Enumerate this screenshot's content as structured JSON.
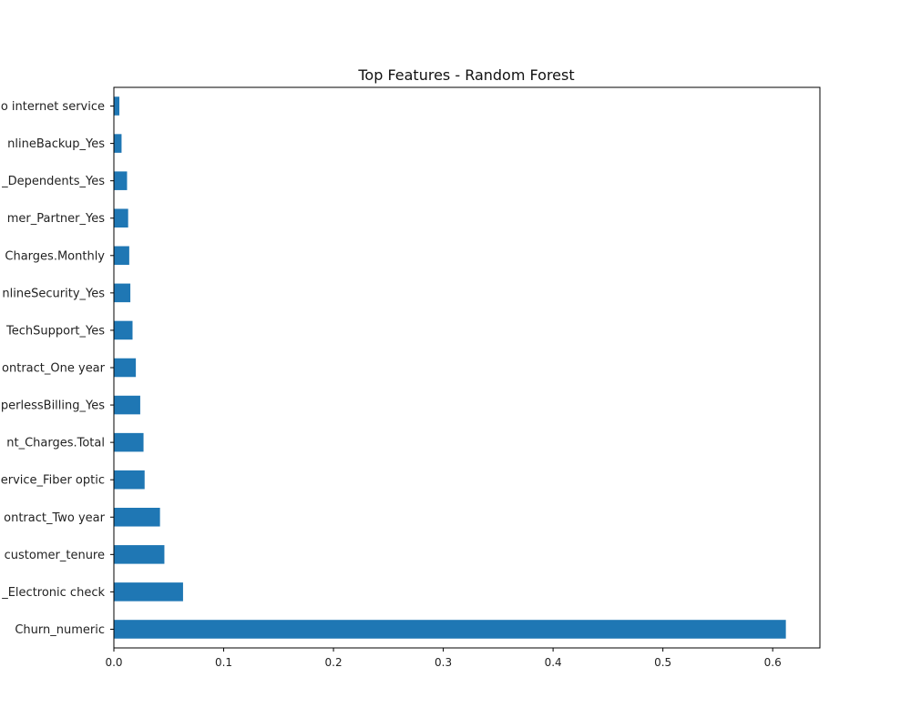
{
  "chart_data": {
    "type": "bar",
    "orientation": "horizontal",
    "title": "Top Features - Random Forest",
    "xlabel": "",
    "ylabel": "",
    "xlim": [
      0,
      0.643
    ],
    "xticks": [
      0.0,
      0.1,
      0.2,
      0.3,
      0.4,
      0.5,
      0.6
    ],
    "xtick_labels": [
      "0.0",
      "0.1",
      "0.2",
      "0.3",
      "0.4",
      "0.5",
      "0.6"
    ],
    "grid": false,
    "bar_color": "#1f77b4",
    "categories": [
      "Churn_numeric",
      "_Electronic check",
      "customer_tenure",
      "ontract_Two year",
      "ervice_Fiber optic",
      "nt_Charges.Total",
      "perlessBilling_Yes",
      "ontract_One year",
      "TechSupport_Yes",
      "nlineSecurity_Yes",
      "Charges.Monthly",
      "mer_Partner_Yes",
      "_Dependents_Yes",
      "nlineBackup_Yes",
      "o internet service"
    ],
    "values": [
      0.612,
      0.063,
      0.046,
      0.042,
      0.028,
      0.027,
      0.024,
      0.02,
      0.017,
      0.015,
      0.014,
      0.013,
      0.012,
      0.007,
      0.005
    ]
  }
}
